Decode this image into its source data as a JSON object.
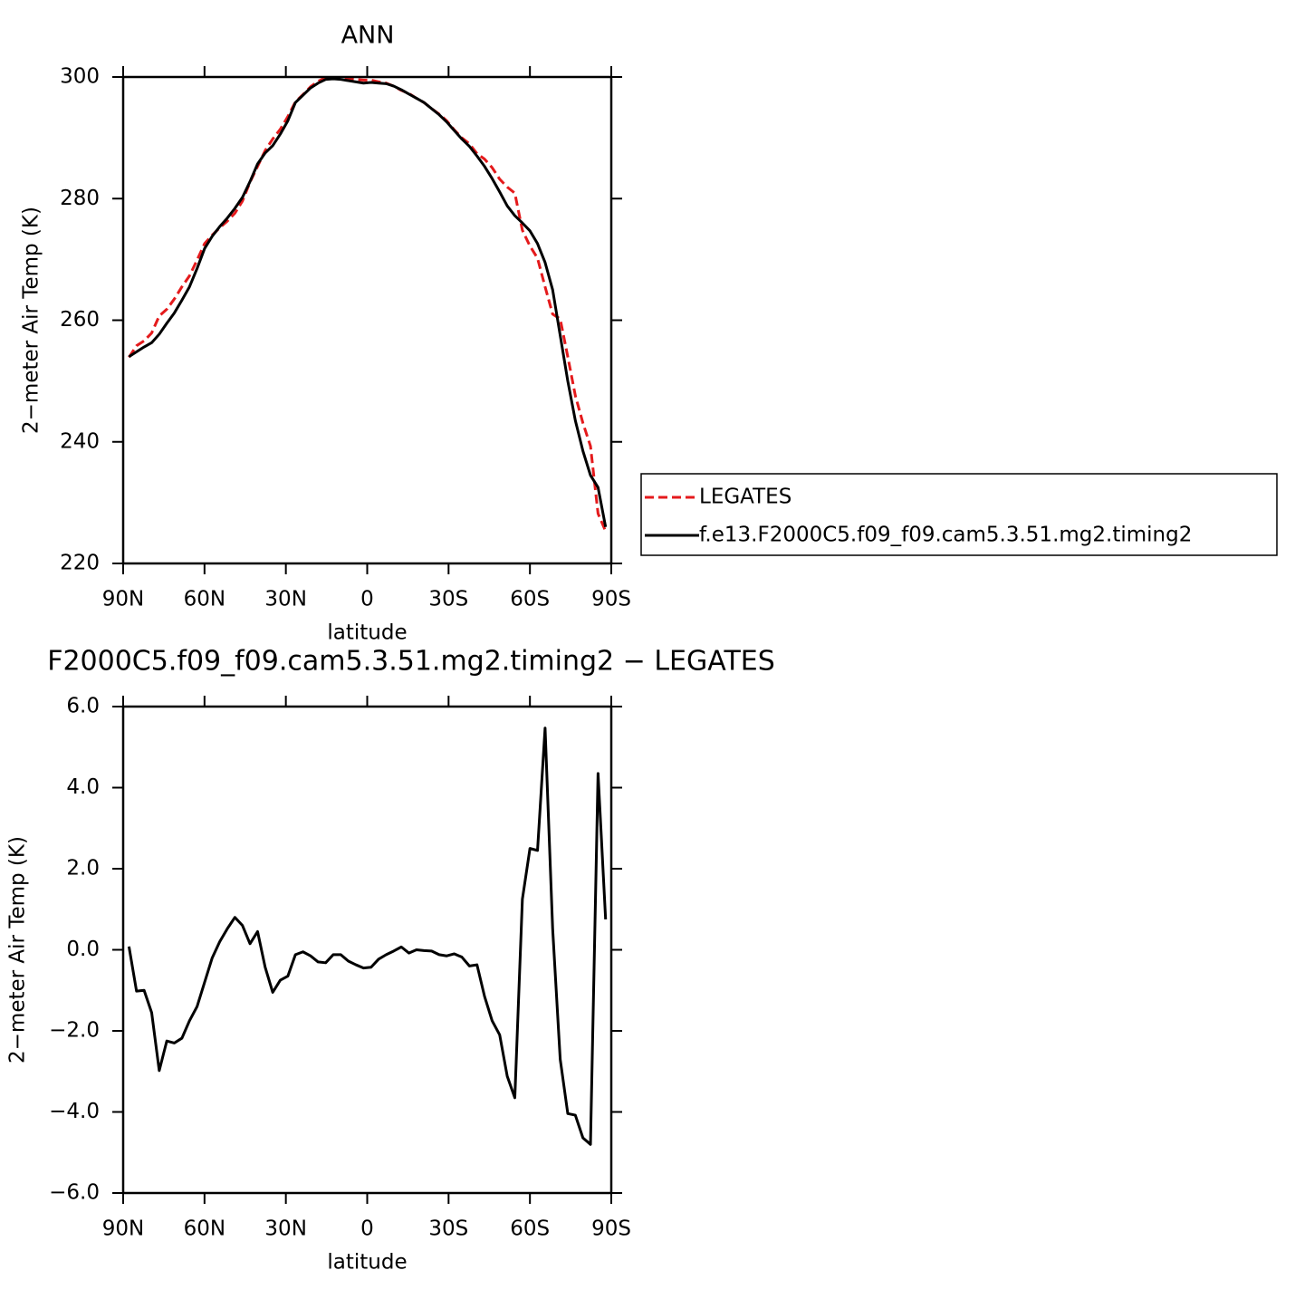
{
  "chart_data": [
    {
      "type": "line",
      "title": "ANN",
      "xlabel": "latitude",
      "ylabel": "2−meter Air Temp (K)",
      "xlim": [
        90,
        -90
      ],
      "xticks": [
        {
          "value": 90,
          "label": "90N"
        },
        {
          "value": 60,
          "label": "60N"
        },
        {
          "value": 30,
          "label": "30N"
        },
        0,
        {
          "value": -30,
          "label": "30S"
        },
        {
          "value": -60,
          "label": "60S"
        },
        {
          "value": -90,
          "label": "90S"
        }
      ],
      "ylim": [
        220,
        300
      ],
      "yticks": [
        220,
        240,
        260,
        280,
        300
      ],
      "legend": "right",
      "x": [
        87.86,
        85.07,
        82.28,
        79.49,
        76.7,
        73.91,
        71.12,
        68.33,
        65.54,
        62.75,
        59.96,
        57.17,
        54.38,
        51.59,
        48.8,
        46.01,
        43.22,
        40.43,
        37.64,
        34.85,
        32.06,
        29.27,
        26.48,
        23.69,
        20.9,
        18.11,
        15.32,
        12.53,
        9.74,
        6.95,
        4.16,
        1.37,
        -1.42,
        -4.21,
        -7.0,
        -9.79,
        -12.58,
        -15.37,
        -18.16,
        -20.95,
        -23.74,
        -26.53,
        -29.32,
        -32.11,
        -34.9,
        -37.69,
        -40.48,
        -43.27,
        -46.06,
        -48.85,
        -51.64,
        -54.43,
        -57.22,
        -60.01,
        -62.8,
        -65.59,
        -68.38,
        -71.17,
        -73.96,
        -76.75,
        -79.54,
        -82.33,
        -85.12,
        -87.91
      ],
      "series": [
        {
          "name": "LEGATES",
          "color": "#e41a1c",
          "dashed": true,
          "values": [
            253.9,
            255.8,
            256.6,
            257.9,
            260.7,
            261.8,
            263.5,
            265.5,
            267.3,
            269.9,
            272.6,
            274.0,
            275.2,
            276.3,
            277.6,
            279.6,
            282.7,
            285.3,
            287.9,
            289.8,
            291.4,
            293.5,
            295.9,
            297.1,
            298.4,
            299.3,
            299.9,
            299.8,
            299.7,
            299.7,
            299.6,
            299.5,
            299.5,
            299.2,
            299.0,
            298.5,
            297.8,
            297.3,
            296.5,
            295.8,
            294.8,
            293.9,
            292.8,
            291.3,
            290.0,
            289.0,
            287.4,
            286.5,
            285.1,
            283.2,
            281.9,
            280.9,
            274.8,
            272.2,
            270.2,
            265.5,
            261.0,
            260.2,
            254.0,
            247.6,
            243.1,
            239.3,
            228.2,
            225.3
          ]
        },
        {
          "name": "f.e13.F2000C5.f09_f09.cam5.3.51.mg2.timing2",
          "color": "#000000",
          "dashed": false,
          "values": [
            254.0,
            254.8,
            255.6,
            256.3,
            257.7,
            259.5,
            261.2,
            263.3,
            265.5,
            268.5,
            271.8,
            273.8,
            275.4,
            276.8,
            278.4,
            280.2,
            282.8,
            285.7,
            287.5,
            288.7,
            290.6,
            292.8,
            295.8,
            297.0,
            298.2,
            299.0,
            299.6,
            299.7,
            299.6,
            299.4,
            299.2,
            299.0,
            299.1,
            299.0,
            298.9,
            298.5,
            297.9,
            297.2,
            296.5,
            295.8,
            294.8,
            293.8,
            292.6,
            291.2,
            289.8,
            288.6,
            287.0,
            285.3,
            283.3,
            281.1,
            278.8,
            277.2,
            276.0,
            274.7,
            272.6,
            269.5,
            265.0,
            257.5,
            250.0,
            243.5,
            238.5,
            234.5,
            232.5,
            226.0
          ]
        }
      ]
    },
    {
      "type": "line",
      "title": "F2000C5.f09_f09.cam5.3.51.mg2.timing2 − LEGATES",
      "xlabel": "latitude",
      "ylabel": "2−meter Air Temp (K)",
      "xlim": [
        90,
        -90
      ],
      "xticks": [
        {
          "value": 90,
          "label": "90N"
        },
        {
          "value": 60,
          "label": "60N"
        },
        {
          "value": 30,
          "label": "30N"
        },
        0,
        {
          "value": -30,
          "label": "30S"
        },
        {
          "value": -60,
          "label": "60S"
        },
        {
          "value": -90,
          "label": "90S"
        }
      ],
      "ylim": [
        -6,
        6
      ],
      "yticks": [
        {
          "value": -6,
          "label": "−6.0"
        },
        {
          "value": -4,
          "label": "−4.0"
        },
        {
          "value": -2,
          "label": "−2.0"
        },
        {
          "value": 0,
          "label": "0.0"
        },
        {
          "value": 2,
          "label": "2.0"
        },
        {
          "value": 4,
          "label": "4.0"
        },
        {
          "value": 6,
          "label": "6.0"
        }
      ],
      "x": [
        87.86,
        85.07,
        82.28,
        79.49,
        76.7,
        73.91,
        71.12,
        68.33,
        65.54,
        62.75,
        59.96,
        57.17,
        54.38,
        51.59,
        48.8,
        46.01,
        43.22,
        40.43,
        37.64,
        34.85,
        32.06,
        29.27,
        26.48,
        23.69,
        20.9,
        18.11,
        15.32,
        12.53,
        9.74,
        6.95,
        4.16,
        1.37,
        -1.42,
        -4.21,
        -7.0,
        -9.79,
        -12.58,
        -15.37,
        -18.16,
        -20.95,
        -23.74,
        -26.53,
        -29.32,
        -32.11,
        -34.9,
        -37.69,
        -40.48,
        -43.27,
        -46.06,
        -48.85,
        -51.64,
        -54.43,
        -57.22,
        -60.01,
        -62.8,
        -65.59,
        -68.38,
        -71.17,
        -73.96,
        -76.75,
        -79.54,
        -82.33,
        -85.12,
        -87.91
      ],
      "series": [
        {
          "color": "#000000",
          "dashed": false,
          "values": [
            0.08,
            -1.02,
            -1.0,
            -1.55,
            -2.98,
            -2.25,
            -2.3,
            -2.18,
            -1.75,
            -1.4,
            -0.8,
            -0.2,
            0.2,
            0.52,
            0.8,
            0.6,
            0.15,
            0.45,
            -0.43,
            -1.05,
            -0.75,
            -0.65,
            -0.12,
            -0.05,
            -0.15,
            -0.3,
            -0.32,
            -0.12,
            -0.12,
            -0.28,
            -0.37,
            -0.45,
            -0.43,
            -0.23,
            -0.12,
            -0.03,
            0.07,
            -0.08,
            0.0,
            -0.02,
            -0.03,
            -0.12,
            -0.15,
            -0.1,
            -0.18,
            -0.4,
            -0.37,
            -1.15,
            -1.75,
            -2.1,
            -3.12,
            -3.65,
            1.25,
            2.5,
            2.45,
            5.47,
            0.52,
            -2.7,
            -4.04,
            -4.08,
            -4.64,
            -4.8,
            4.35,
            0.75
          ]
        }
      ]
    }
  ]
}
